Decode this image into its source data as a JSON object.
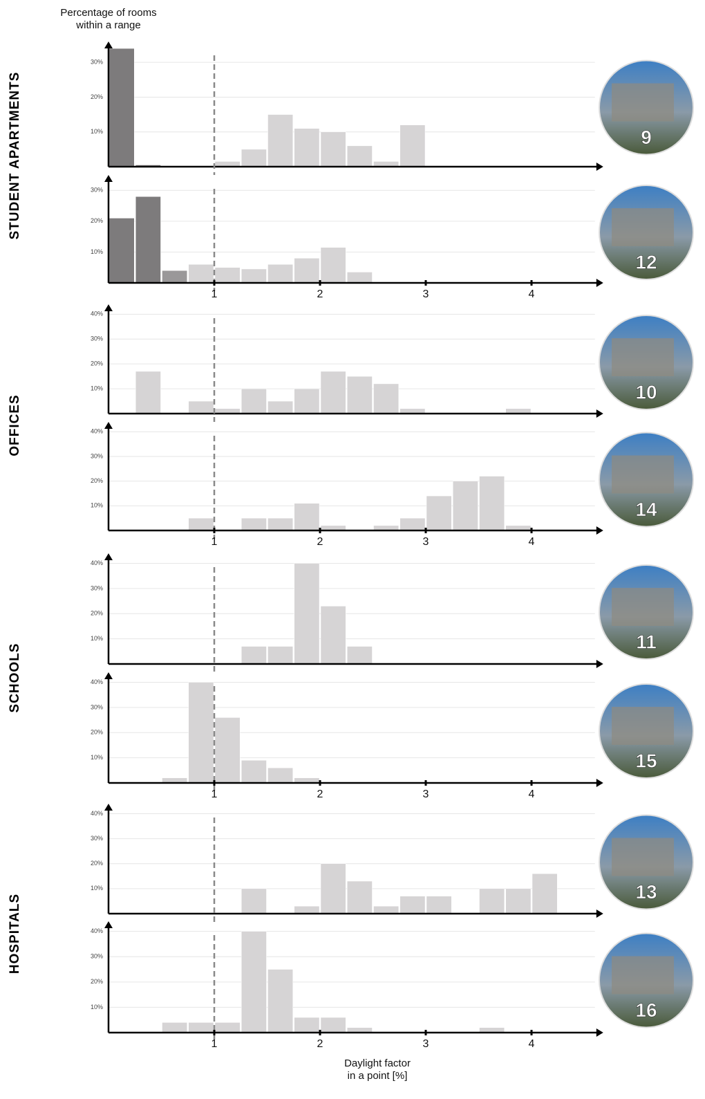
{
  "y_label": [
    "Percentage of rooms",
    "within a range"
  ],
  "x_label": [
    "Daylight factor",
    "in a point [%]"
  ],
  "groups": [
    "STUDENT APARTMENTS",
    "OFFICES",
    "SCHOOLS",
    "HOSPITALS"
  ],
  "chart_data": [
    {
      "type": "histogram",
      "badge": "9",
      "bins": [
        0,
        0.25,
        0.5,
        0.75,
        1,
        1.25,
        1.5,
        1.75,
        2,
        2.25,
        2.5,
        2.75,
        3,
        3.25,
        3.5,
        3.75,
        4,
        4.25,
        4.5
      ],
      "counts": [
        34,
        0.5,
        0,
        0,
        1.5,
        5,
        15,
        11,
        10,
        6,
        1.5,
        12,
        0,
        0,
        0,
        0,
        0,
        0
      ],
      "color": "#d6d4d5",
      "colors": [
        "#7d7b7c",
        "#7d7b7c"
      ],
      "xlim": [
        0,
        4.6
      ],
      "ylim": [
        0,
        36
      ],
      "yticks": [
        {
          "value": 10,
          "label": "10%"
        },
        {
          "value": 20,
          "label": "20%"
        },
        {
          "value": 30,
          "label": "30%"
        }
      ],
      "vline": 1
    },
    {
      "type": "histogram",
      "badge": "12",
      "bins": [
        0,
        0.25,
        0.5,
        0.75,
        1,
        1.25,
        1.5,
        1.75,
        2,
        2.25,
        2.5,
        2.75,
        3,
        3.25,
        3.5,
        3.75,
        4,
        4.25,
        4.5
      ],
      "counts": [
        21,
        28,
        4,
        6,
        5,
        4.5,
        6,
        8,
        11.5,
        3.5,
        0,
        0,
        0,
        0,
        0,
        0,
        0,
        0
      ],
      "color": "#d6d4d5",
      "colors": [
        "#7d7b7c",
        "#7d7b7c",
        "#9a9899"
      ],
      "xlim": [
        0,
        4.6
      ],
      "ylim": [
        0,
        35
      ],
      "yticks": [
        {
          "value": 10,
          "label": "10%"
        },
        {
          "value": 20,
          "label": "20%"
        },
        {
          "value": 30,
          "label": "30%"
        }
      ],
      "xticks": [
        1,
        2,
        3,
        4
      ],
      "vline": 1
    },
    {
      "type": "histogram",
      "badge": "10",
      "bins": [
        0,
        0.25,
        0.5,
        0.75,
        1,
        1.25,
        1.5,
        1.75,
        2,
        2.25,
        2.5,
        2.75,
        3,
        3.25,
        3.5,
        3.75,
        4,
        4.25,
        4.5
      ],
      "counts": [
        0,
        17,
        0,
        5,
        2,
        10,
        5,
        10,
        17,
        15,
        12,
        2,
        0,
        0,
        0,
        2,
        0,
        0
      ],
      "color": "#d6d4d5",
      "xlim": [
        0,
        4.6
      ],
      "ylim": [
        0,
        44
      ],
      "yticks": [
        {
          "value": 10,
          "label": "10%"
        },
        {
          "value": 20,
          "label": "20%"
        },
        {
          "value": 30,
          "label": "30%"
        },
        {
          "value": 40,
          "label": "40%"
        }
      ],
      "vline": 1
    },
    {
      "type": "histogram",
      "badge": "14",
      "bins": [
        0,
        0.25,
        0.5,
        0.75,
        1,
        1.25,
        1.5,
        1.75,
        2,
        2.25,
        2.5,
        2.75,
        3,
        3.25,
        3.5,
        3.75,
        4,
        4.25,
        4.5
      ],
      "counts": [
        0,
        0,
        0,
        5,
        0,
        5,
        5,
        11,
        2,
        0,
        2,
        5,
        14,
        20,
        22,
        2,
        0,
        0
      ],
      "color": "#d6d4d5",
      "xlim": [
        0,
        4.6
      ],
      "ylim": [
        0,
        44
      ],
      "yticks": [
        {
          "value": 10,
          "label": "10%"
        },
        {
          "value": 20,
          "label": "20%"
        },
        {
          "value": 30,
          "label": "30%"
        },
        {
          "value": 40,
          "label": "40%"
        }
      ],
      "xticks": [
        1,
        2,
        3,
        4
      ],
      "vline": 1
    },
    {
      "type": "histogram",
      "badge": "11",
      "bins": [
        0,
        0.25,
        0.5,
        0.75,
        1,
        1.25,
        1.5,
        1.75,
        2,
        2.25,
        2.5,
        2.75,
        3,
        3.25,
        3.5,
        3.75,
        4,
        4.25,
        4.5
      ],
      "counts": [
        0,
        0,
        0,
        0,
        0,
        7,
        7,
        40,
        23,
        7,
        0,
        0,
        0,
        0,
        0,
        0,
        0,
        0
      ],
      "color": "#d6d4d5",
      "xlim": [
        0,
        4.6
      ],
      "ylim": [
        0,
        44
      ],
      "yticks": [
        {
          "value": 10,
          "label": "10%"
        },
        {
          "value": 20,
          "label": "20%"
        },
        {
          "value": 30,
          "label": "30%"
        },
        {
          "value": 40,
          "label": "40%"
        }
      ],
      "vline": 1
    },
    {
      "type": "histogram",
      "badge": "15",
      "bins": [
        0,
        0.25,
        0.5,
        0.75,
        1,
        1.25,
        1.5,
        1.75,
        2,
        2.25,
        2.5,
        2.75,
        3,
        3.25,
        3.5,
        3.75,
        4,
        4.25,
        4.5
      ],
      "counts": [
        0,
        0,
        2,
        40,
        26,
        9,
        6,
        2,
        0,
        0,
        0,
        0,
        0,
        0,
        0,
        0,
        0,
        0
      ],
      "color": "#d6d4d5",
      "xlim": [
        0,
        4.6
      ],
      "ylim": [
        0,
        44
      ],
      "yticks": [
        {
          "value": 10,
          "label": "10%"
        },
        {
          "value": 20,
          "label": "20%"
        },
        {
          "value": 30,
          "label": "30%"
        },
        {
          "value": 40,
          "label": "40%"
        }
      ],
      "xticks": [
        1,
        2,
        3,
        4
      ],
      "vline": 1
    },
    {
      "type": "histogram",
      "badge": "13",
      "bins": [
        0,
        0.25,
        0.5,
        0.75,
        1,
        1.25,
        1.5,
        1.75,
        2,
        2.25,
        2.5,
        2.75,
        3,
        3.25,
        3.5,
        3.75,
        4,
        4.25,
        4.5
      ],
      "counts": [
        0,
        0,
        0,
        0,
        0,
        10,
        0,
        3,
        20,
        13,
        3,
        7,
        7,
        0,
        10,
        10,
        16,
        0
      ],
      "color": "#d6d4d5",
      "xlim": [
        0,
        4.6
      ],
      "ylim": [
        0,
        44
      ],
      "yticks": [
        {
          "value": 10,
          "label": "10%"
        },
        {
          "value": 20,
          "label": "20%"
        },
        {
          "value": 30,
          "label": "30%"
        },
        {
          "value": 40,
          "label": "40%"
        }
      ],
      "vline": 1
    },
    {
      "type": "histogram",
      "badge": "16",
      "bins": [
        0,
        0.25,
        0.5,
        0.75,
        1,
        1.25,
        1.5,
        1.75,
        2,
        2.25,
        2.5,
        2.75,
        3,
        3.25,
        3.5,
        3.75,
        4,
        4.25,
        4.5
      ],
      "counts": [
        0,
        0,
        4,
        4,
        4,
        40,
        25,
        6,
        6,
        2,
        0,
        0,
        0,
        0,
        2,
        0,
        0,
        0
      ],
      "color": "#d6d4d5",
      "xlim": [
        0,
        4.6
      ],
      "ylim": [
        0,
        44
      ],
      "yticks": [
        {
          "value": 10,
          "label": "10%"
        },
        {
          "value": 20,
          "label": "20%"
        },
        {
          "value": 30,
          "label": "30%"
        },
        {
          "value": 40,
          "label": "40%"
        }
      ],
      "xticks": [
        1,
        2,
        3,
        4
      ],
      "vline": 1
    }
  ]
}
